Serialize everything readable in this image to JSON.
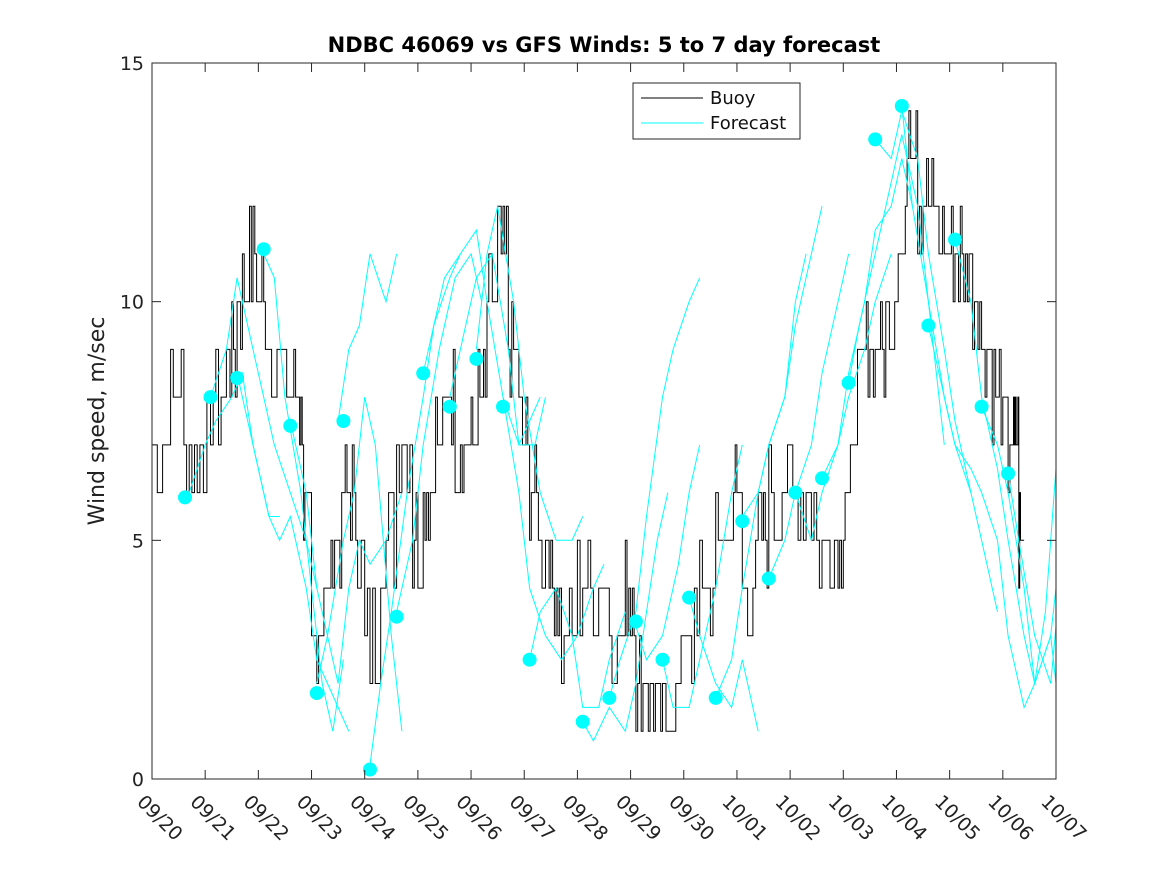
{
  "chart_data": {
    "type": "line",
    "title": "NDBC 46069 vs GFS Winds: 5 to 7 day forecast",
    "xlabel": "",
    "ylabel": "Wind speed, m/sec",
    "xlim": [
      0,
      17
    ],
    "ylim": [
      0,
      15
    ],
    "yticks": [
      0,
      5,
      10,
      15
    ],
    "xtick_labels": [
      "09/20",
      "09/21",
      "09/22",
      "09/23",
      "09/24",
      "09/25",
      "09/26",
      "09/27",
      "09/28",
      "09/29",
      "09/30",
      "10/01",
      "10/02",
      "10/03",
      "10/04",
      "10/05",
      "10/06",
      "10/07"
    ],
    "legend": {
      "position": "top-center",
      "entries": [
        "Buoy",
        "Forecast"
      ]
    },
    "colors": {
      "buoy": "#000000",
      "forecast": "#00FFFF",
      "axis": "#262626"
    },
    "buoy": {
      "name": "Buoy",
      "x": [
        0,
        0.3,
        0.6,
        0.9,
        1.1,
        1.4,
        1.6,
        1.8,
        2.0,
        2.2,
        2.5,
        2.7,
        2.85,
        3.0,
        3.2,
        3.4,
        3.6,
        3.8,
        4.0,
        4.3,
        4.6,
        4.9,
        5.1,
        5.3,
        5.5,
        5.7,
        5.9,
        6.1,
        6.3,
        6.5,
        6.7,
        6.9,
        7.1,
        7.3,
        7.5,
        7.7,
        8.0,
        8.3,
        8.6,
        8.9,
        9.1,
        9.3,
        9.5,
        9.7,
        10.0,
        10.3,
        10.6,
        10.9,
        11.1,
        11.4,
        11.6,
        11.9,
        12.2,
        12.5,
        12.8,
        13.0,
        13.2,
        13.4,
        13.6,
        13.8,
        14.0,
        14.2,
        14.4,
        14.6,
        14.8,
        15.0,
        15.2,
        15.4,
        15.6,
        15.8,
        16.0,
        16.2,
        16.3
      ],
      "y": [
        7,
        7.5,
        7,
        6.5,
        8,
        9,
        10,
        10.5,
        10,
        9,
        8,
        7.5,
        5,
        3,
        4,
        5,
        5.5,
        4.5,
        3,
        5,
        6.5,
        5,
        6,
        7,
        7.5,
        7,
        6.5,
        8,
        9.5,
        10.5,
        9,
        7,
        5.5,
        5,
        3.5,
        3,
        3.5,
        3.5,
        3,
        3.5,
        2,
        1.5,
        0.5,
        2,
        3,
        4,
        5,
        5.5,
        4,
        5,
        6,
        5.5,
        6,
        5,
        5,
        6,
        8,
        8.5,
        9,
        9.5,
        11,
        14,
        12,
        11.5,
        11,
        11,
        10.5,
        10,
        9,
        8,
        7,
        6.5,
        5
      ]
    },
    "forecast_runs": [
      {
        "x": [
          0.7,
          1.0,
          1.2,
          1.5,
          1.7,
          1.9,
          2.2,
          2.4
        ],
        "y": [
          6,
          7,
          7.5,
          8,
          8.5,
          7,
          5.5,
          5.5
        ]
      },
      {
        "x": [
          1.1,
          1.4,
          1.6,
          1.9,
          2.1,
          2.3,
          2.6,
          2.9,
          3.1
        ],
        "y": [
          8,
          9,
          10.5,
          9,
          8,
          7,
          6,
          5,
          4
        ]
      },
      {
        "x": [
          1.6,
          1.9,
          2.2,
          2.4,
          2.6,
          2.9,
          3.1,
          3.3,
          3.5,
          3.7
        ],
        "y": [
          8.5,
          7,
          5.5,
          5,
          5.5,
          4,
          2.5,
          2,
          1.5,
          1
        ]
      },
      {
        "x": [
          2.1,
          2.3,
          2.5,
          2.8,
          3.0,
          3.2,
          3.4,
          3.6
        ],
        "y": [
          11,
          10.5,
          8,
          6,
          4,
          2,
          1,
          2.5
        ]
      },
      {
        "x": [
          2.6,
          2.9,
          3.1,
          3.3,
          3.5,
          3.7,
          3.9,
          4.1,
          4.4,
          4.7
        ],
        "y": [
          7.5,
          6,
          4,
          3,
          2,
          4,
          5,
          4.5,
          5,
          6
        ]
      },
      {
        "x": [
          3.1,
          3.3,
          3.6,
          3.8,
          4.0,
          4.2,
          4.5,
          4.7
        ],
        "y": [
          2,
          3,
          5,
          6,
          8,
          7,
          3,
          1
        ]
      },
      {
        "x": [
          3.5,
          3.7,
          3.9,
          4.1,
          4.4,
          4.6
        ],
        "y": [
          7.5,
          9,
          9.5,
          11,
          10,
          11
        ]
      },
      {
        "x": [
          4.1,
          4.3,
          4.5,
          4.8,
          5.1,
          5.3,
          5.6,
          5.8
        ],
        "y": [
          0.3,
          2,
          3.5,
          6,
          8,
          9.5,
          10.5,
          11
        ]
      },
      {
        "x": [
          4.6,
          4.9,
          5.1,
          5.4,
          5.7,
          6.0,
          6.2
        ],
        "y": [
          3.5,
          5,
          7,
          9,
          10.5,
          11,
          10
        ]
      },
      {
        "x": [
          5.1,
          5.3,
          5.5,
          5.8,
          6.1,
          6.3,
          6.6,
          6.9,
          7.1,
          7.3
        ],
        "y": [
          8.5,
          9.5,
          10.5,
          11,
          11.5,
          10,
          8,
          7,
          7.5,
          8
        ]
      },
      {
        "x": [
          5.6,
          5.9,
          6.1,
          6.4,
          6.7,
          6.9,
          7.2,
          7.4
        ],
        "y": [
          8,
          9.5,
          10.5,
          11,
          9,
          7,
          7,
          8
        ]
      },
      {
        "x": [
          6.1,
          6.3,
          6.5,
          6.8,
          7.0,
          7.3,
          7.6,
          7.9,
          8.1
        ],
        "y": [
          9,
          11,
          12,
          10,
          8,
          6,
          5,
          5,
          5.5
        ]
      },
      {
        "x": [
          6.6,
          6.9,
          7.1,
          7.4,
          7.7,
          8.0,
          8.3,
          8.5
        ],
        "y": [
          8,
          6,
          4,
          3,
          2.5,
          3,
          4,
          4.5
        ]
      },
      {
        "x": [
          7.1,
          7.3,
          7.6,
          7.9,
          8.1,
          8.4,
          8.6,
          8.9
        ],
        "y": [
          2.5,
          3.5,
          4,
          3,
          1.5,
          1.5,
          2.5,
          3.5
        ]
      },
      {
        "x": [
          8.1,
          8.3,
          8.6,
          8.9,
          9.1,
          9.3,
          9.5,
          9.7
        ],
        "y": [
          1.2,
          0.8,
          1.5,
          1,
          2,
          3.5,
          5,
          6
        ]
      },
      {
        "x": [
          8.6,
          8.8,
          9.1,
          9.3,
          9.6,
          9.8,
          10.1,
          10.3
        ],
        "y": [
          1.7,
          2.5,
          3.5,
          5.5,
          8,
          9,
          10,
          10.5
        ]
      },
      {
        "x": [
          9.1,
          9.3,
          9.6,
          9.9,
          10.1,
          10.3
        ],
        "y": [
          3.2,
          2.5,
          3,
          4.5,
          6,
          7
        ]
      },
      {
        "x": [
          9.6,
          9.8,
          10.1,
          10.3,
          10.6,
          10.9,
          11.1
        ],
        "y": [
          2.5,
          1.5,
          1.5,
          2.5,
          4,
          6,
          7
        ]
      },
      {
        "x": [
          10.1,
          10.3,
          10.6,
          10.9,
          11.1,
          11.4
        ],
        "y": [
          3.8,
          3,
          2,
          1.5,
          2.5,
          1
        ]
      },
      {
        "x": [
          10.6,
          10.9,
          11.1,
          11.4,
          11.6,
          11.9,
          12.1,
          12.3
        ],
        "y": [
          1.7,
          2.5,
          4,
          6,
          7,
          8,
          10,
          11
        ]
      },
      {
        "x": [
          11.1,
          11.4,
          11.6,
          11.9,
          12.1,
          12.4,
          12.6
        ],
        "y": [
          5.5,
          6,
          7,
          8,
          9.5,
          11,
          12
        ]
      },
      {
        "x": [
          11.6,
          11.9,
          12.1,
          12.4,
          12.6,
          12.9,
          13.1
        ],
        "y": [
          4.2,
          5,
          6,
          7,
          8.5,
          10,
          11
        ]
      },
      {
        "x": [
          12.1,
          12.4,
          12.6,
          12.9,
          13.1,
          13.4,
          13.6,
          13.9
        ],
        "y": [
          6,
          5,
          6,
          7,
          8,
          9,
          10,
          11
        ]
      },
      {
        "x": [
          12.6,
          12.9,
          13.1,
          13.4,
          13.6,
          13.9,
          14.1,
          14.3
        ],
        "y": [
          6.3,
          7,
          8.5,
          10,
          11.5,
          12,
          13,
          12
        ]
      },
      {
        "x": [
          13.1,
          13.3,
          13.6,
          13.9,
          14.1,
          14.4,
          14.6,
          14.9
        ],
        "y": [
          8.3,
          9.5,
          11,
          12.5,
          13.5,
          12,
          10,
          7
        ]
      },
      {
        "x": [
          13.6,
          13.9,
          14.1,
          14.4,
          14.6,
          14.9,
          15.1,
          15.4
        ],
        "y": [
          13.4,
          13,
          14,
          13,
          11,
          9,
          7.5,
          6
        ]
      },
      {
        "x": [
          14.1,
          14.3,
          14.6,
          14.9,
          15.1,
          15.4,
          15.6,
          15.9
        ],
        "y": [
          14.1,
          12,
          10,
          8,
          7,
          6,
          5,
          3.5
        ]
      },
      {
        "x": [
          14.6,
          14.9,
          15.1,
          15.4,
          15.6,
          15.9,
          16.1,
          16.4,
          16.6,
          16.9,
          17.0
        ],
        "y": [
          9.5,
          8,
          7,
          6.5,
          6,
          5,
          3,
          1.5,
          2,
          3,
          2
        ]
      },
      {
        "x": [
          15.1,
          15.4,
          15.6,
          15.9,
          16.1,
          16.4,
          16.6,
          16.9,
          17.0
        ],
        "y": [
          11.3,
          10,
          8,
          6.5,
          5,
          3,
          2,
          3,
          4
        ]
      },
      {
        "x": [
          15.6,
          15.9,
          16.1,
          16.4,
          16.6,
          16.8,
          17.0
        ],
        "y": [
          7.8,
          7,
          6,
          4,
          2,
          3.5,
          6.5
        ]
      },
      {
        "x": [
          16.1,
          16.3,
          16.6,
          16.9,
          17.0
        ],
        "y": [
          6.4,
          5,
          3,
          2,
          3.2
        ]
      }
    ],
    "forecast_points": {
      "x": [
        0.62,
        1.1,
        1.6,
        2.1,
        2.6,
        3.1,
        3.6,
        4.1,
        4.6,
        5.1,
        5.6,
        6.1,
        6.6,
        7.1,
        8.1,
        8.6,
        9.1,
        9.6,
        10.1,
        10.6,
        11.1,
        11.6,
        12.1,
        12.6,
        13.1,
        13.6,
        14.1,
        14.6,
        15.1,
        15.6,
        16.1
      ],
      "y": [
        5.9,
        8.0,
        8.4,
        11.1,
        7.4,
        1.8,
        7.5,
        0.2,
        3.4,
        8.5,
        7.8,
        8.8,
        7.8,
        2.5,
        1.2,
        1.7,
        3.3,
        2.5,
        3.8,
        1.7,
        5.4,
        4.2,
        6.0,
        6.3,
        8.3,
        13.4,
        14.1,
        9.5,
        11.3,
        7.8,
        6.4
      ]
    }
  }
}
